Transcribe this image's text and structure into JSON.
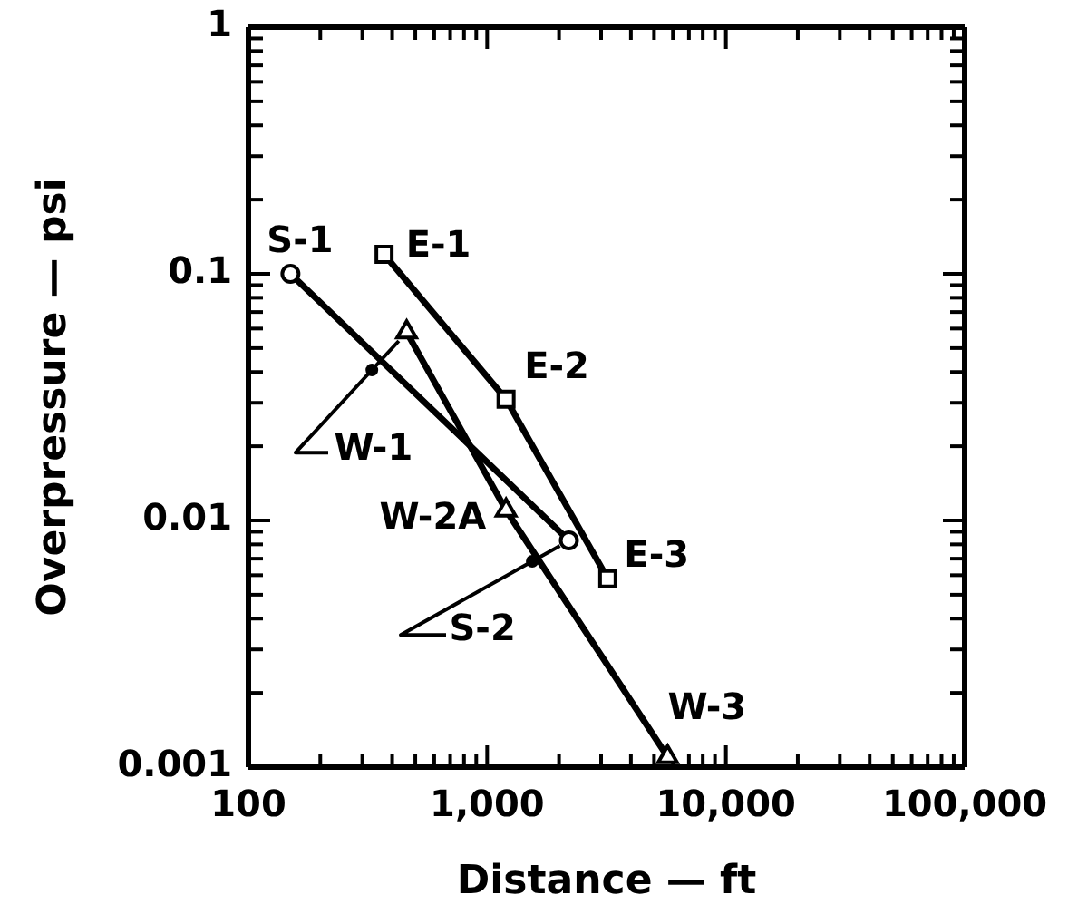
{
  "chart_data": {
    "type": "line",
    "xlabel": "Distance — ft",
    "ylabel": "Overpressure — psi",
    "log": "xy",
    "xlim": [
      100,
      100000
    ],
    "ylim": [
      0.001,
      1
    ],
    "xticks": [
      100,
      {
        "value": 200,
        "label": null
      },
      {
        "value": 300,
        "label": null
      },
      {
        "value": 400,
        "label": null
      },
      {
        "value": 500,
        "label": null
      },
      {
        "value": 600,
        "label": null
      },
      {
        "value": 700,
        "label": null
      },
      {
        "value": 800,
        "label": null
      },
      {
        "value": 900,
        "label": null
      },
      {
        "value": 1000,
        "label": "1,000"
      },
      {
        "value": 2000,
        "label": null
      },
      {
        "value": 3000,
        "label": null
      },
      {
        "value": 4000,
        "label": null
      },
      {
        "value": 5000,
        "label": null
      },
      {
        "value": 6000,
        "label": null
      },
      {
        "value": 7000,
        "label": null
      },
      {
        "value": 8000,
        "label": null
      },
      {
        "value": 9000,
        "label": null
      },
      {
        "value": 10000,
        "label": "10,000"
      },
      {
        "value": 20000,
        "label": null
      },
      {
        "value": 30000,
        "label": null
      },
      {
        "value": 40000,
        "label": null
      },
      {
        "value": 50000,
        "label": null
      },
      {
        "value": 60000,
        "label": null
      },
      {
        "value": 70000,
        "label": null
      },
      {
        "value": 80000,
        "label": null
      },
      {
        "value": 90000,
        "label": null
      },
      {
        "value": 100000,
        "label": "100,000"
      }
    ],
    "yticks": [
      0.001,
      {
        "value": 0.002,
        "label": null
      },
      {
        "value": 0.003,
        "label": null
      },
      {
        "value": 0.004,
        "label": null
      },
      {
        "value": 0.005,
        "label": null
      },
      {
        "value": 0.006,
        "label": null
      },
      {
        "value": 0.007,
        "label": null
      },
      {
        "value": 0.008,
        "label": null
      },
      {
        "value": 0.009,
        "label": null
      },
      0.01,
      {
        "value": 0.02,
        "label": null
      },
      {
        "value": 0.03,
        "label": null
      },
      {
        "value": 0.04,
        "label": null
      },
      {
        "value": 0.05,
        "label": null
      },
      {
        "value": 0.06,
        "label": null
      },
      {
        "value": 0.07,
        "label": null
      },
      {
        "value": 0.08,
        "label": null
      },
      {
        "value": 0.09,
        "label": null
      },
      0.1,
      {
        "value": 0.2,
        "label": null
      },
      {
        "value": 0.3,
        "label": null
      },
      {
        "value": 0.4,
        "label": null
      },
      {
        "value": 0.5,
        "label": null
      },
      {
        "value": 0.6,
        "label": null
      },
      {
        "value": 0.7,
        "label": null
      },
      {
        "value": 0.8,
        "label": null
      },
      {
        "value": 0.9,
        "label": null
      },
      1
    ],
    "series": [
      {
        "color": "#000000",
        "marker": "circle",
        "x": [
          150,
          2200
        ],
        "values": [
          0.1,
          0.0083
        ]
      },
      {
        "color": "#000000",
        "marker": "square",
        "x": [
          370,
          1200,
          3200
        ],
        "values": [
          0.12,
          0.031,
          0.0058
        ]
      },
      {
        "color": "#000000",
        "marker": "triangle",
        "x": [
          460,
          1200,
          5700
        ],
        "values": [
          0.058,
          0.011,
          0.0011
        ]
      }
    ],
    "annotations": [
      {
        "text": "S-1",
        "x": 150,
        "y": 0.1
      },
      {
        "text": "E-1",
        "x": 370,
        "y": 0.12
      },
      {
        "text": "E-2",
        "x": 1200,
        "y": 0.031
      },
      {
        "text": "W-1",
        "x": 460,
        "y": 0.058
      },
      {
        "text": "W-2A",
        "x": 1200,
        "y": 0.011
      },
      {
        "text": "S-2",
        "x": 2200,
        "y": 0.0083
      },
      {
        "text": "E-3",
        "x": 3200,
        "y": 0.0058
      },
      {
        "text": "W-3",
        "x": 5700,
        "y": 0.0011
      }
    ]
  }
}
